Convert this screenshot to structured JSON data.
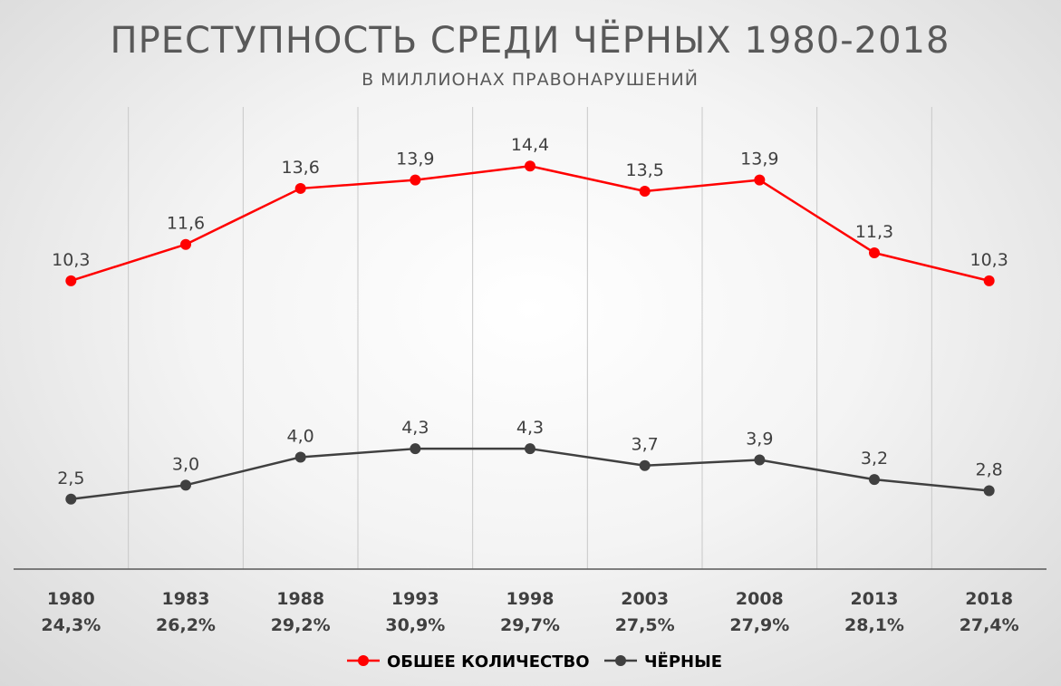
{
  "chart_data": {
    "type": "line",
    "title": "ПРЕСТУПНОСТЬ СРЕДИ ЧЁРНЫХ 1980-2018",
    "subtitle": "В МИЛЛИОНАХ ПРАВОНАРУШЕНИЙ",
    "categories": [
      "1980",
      "1983",
      "1988",
      "1993",
      "1998",
      "2003",
      "2008",
      "2013",
      "2018"
    ],
    "category_sublabels": [
      "24,3%",
      "26,2%",
      "29,2%",
      "30,9%",
      "29,7%",
      "27,5%",
      "27,9%",
      "28,1%",
      "27,4%"
    ],
    "series": [
      {
        "name": "ОБШЕЕ КОЛИЧЕСТВО",
        "color": "#ff0000",
        "values": [
          10.3,
          11.6,
          13.6,
          13.9,
          14.4,
          13.5,
          13.9,
          11.3,
          10.3
        ],
        "labels": [
          "10,3",
          "11,6",
          "13,6",
          "13,9",
          "14,4",
          "13,5",
          "13,9",
          "11,3",
          "10,3"
        ]
      },
      {
        "name": "ЧЁРНЫЕ",
        "color": "#404040",
        "values": [
          2.5,
          3.0,
          4.0,
          4.3,
          4.3,
          3.7,
          3.9,
          3.2,
          2.8
        ],
        "labels": [
          "2,5",
          "3,0",
          "4,0",
          "4,3",
          "4,3",
          "3,7",
          "3,9",
          "3,2",
          "2,8"
        ]
      }
    ],
    "ylim": [
      0,
      16
    ],
    "grid": "vertical",
    "legend_position": "bottom"
  }
}
